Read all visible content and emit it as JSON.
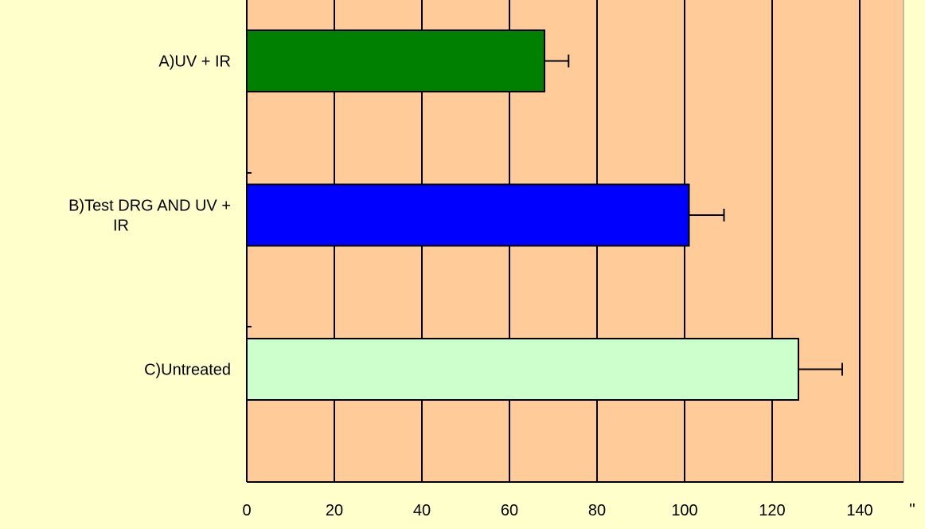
{
  "chart_data": {
    "type": "bar",
    "orientation": "horizontal",
    "categories": [
      [
        "A)UV + IR"
      ],
      [
        "B)Test DRG AND UV +",
        "IR"
      ],
      [
        "C)Untreated"
      ]
    ],
    "values": [
      68,
      101,
      126
    ],
    "errors": [
      5.5,
      8,
      10
    ],
    "bar_colors": [
      "#008000",
      "#0000ff",
      "#ccffcc"
    ],
    "xticks": [
      0,
      20,
      40,
      60,
      80,
      100,
      120,
      140
    ],
    "xlim": [
      0,
      150
    ],
    "axis_end_label": "''",
    "grid": true,
    "plot_background": "#ffcc99",
    "page_background": "#ffffcc",
    "title": "",
    "xlabel": "",
    "ylabel": ""
  }
}
